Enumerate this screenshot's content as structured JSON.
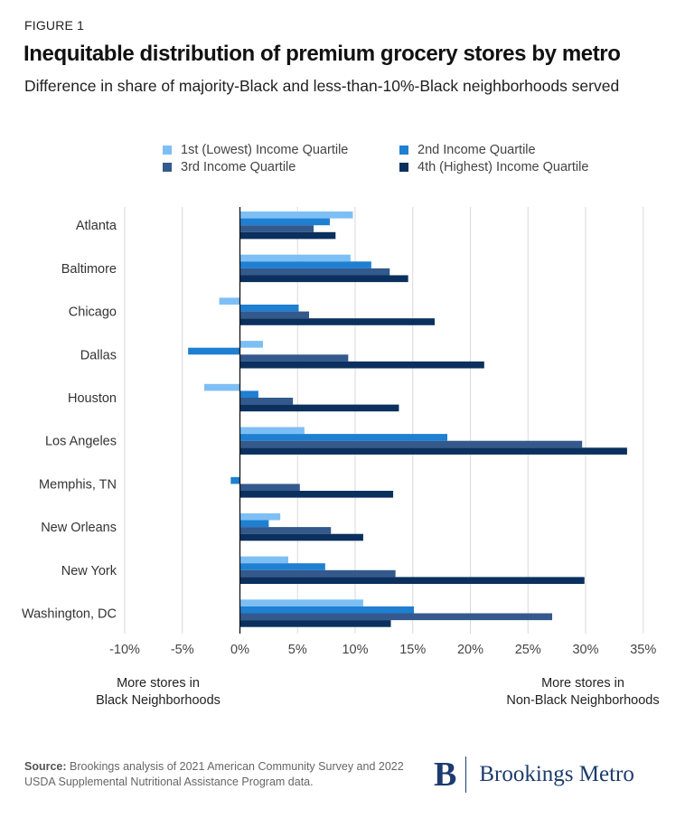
{
  "figure_label": "FIGURE 1",
  "title": "Inequitable distribution of premium grocery stores by metro",
  "subtitle": "Difference in share of majority-Black and less-than-10%-Black neighborhoods served",
  "notes": {
    "left_line1": "More stores in",
    "left_line2": "Black Neighborhoods",
    "right_line1": "More stores in",
    "right_line2": "Non-Black Neighborhoods"
  },
  "source": {
    "label": "Source:",
    "text": "Brookings analysis of 2021 American Community Survey and 2022 USDA Supplemental Nutritional Assistance Program data."
  },
  "brand": {
    "mark": "B",
    "name": "Brookings Metro"
  },
  "colors": {
    "q1": "#7dbff5",
    "q2": "#1f7fd1",
    "q3": "#34598c",
    "q4": "#0b305e",
    "grid": "#d9d9d9",
    "zero_line": "#111111",
    "brand": "#1c3b6e"
  },
  "chart_data": {
    "type": "bar",
    "orientation": "horizontal",
    "categories": [
      "Atlanta",
      "Baltimore",
      "Chicago",
      "Dallas",
      "Houston",
      "Los Angeles",
      "Memphis, TN",
      "New Orleans",
      "New York",
      "Washington, DC"
    ],
    "series": [
      {
        "name": "1st (Lowest) Income Quartile",
        "values": [
          9.8,
          9.6,
          -1.8,
          2.0,
          -3.1,
          5.6,
          0,
          3.5,
          4.2,
          10.7
        ]
      },
      {
        "name": "2nd Income Quartile",
        "values": [
          7.8,
          11.4,
          5.1,
          -4.5,
          1.6,
          18.0,
          -0.8,
          2.5,
          7.4,
          15.1
        ]
      },
      {
        "name": "3rd Income Quartile",
        "values": [
          6.4,
          13.0,
          6.0,
          9.4,
          4.6,
          29.7,
          5.2,
          7.9,
          13.5,
          27.1
        ]
      },
      {
        "name": "4th (Highest) Income Quartile",
        "values": [
          8.3,
          14.6,
          16.9,
          21.2,
          13.8,
          33.6,
          13.3,
          10.7,
          29.9,
          13.1
        ]
      }
    ],
    "xlim": [
      -10,
      35
    ],
    "x_ticks": [
      "-10%",
      "-5%",
      "0%",
      "5%",
      "10%",
      "15%",
      "20%",
      "25%",
      "30%",
      "35%"
    ],
    "xlabel": "",
    "ylabel": "",
    "grid": true,
    "legend_position": "top"
  }
}
